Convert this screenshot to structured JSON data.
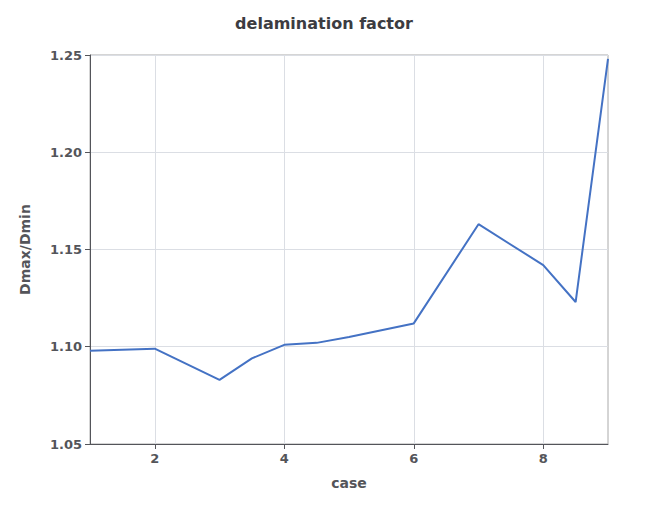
{
  "chart_data": {
    "type": "line",
    "title": "delamination factor",
    "xlabel": "case",
    "ylabel": "Dmax/Dmin",
    "x": [
      1,
      2,
      3,
      3.5,
      4,
      4.5,
      5,
      6,
      7,
      8,
      8.5,
      9
    ],
    "values": [
      1.098,
      1.099,
      1.083,
      1.094,
      1.101,
      1.102,
      1.105,
      1.112,
      1.163,
      1.142,
      1.123,
      1.248
    ],
    "color": "#4472c4",
    "xlim": [
      1,
      9
    ],
    "xticks": [
      2,
      4,
      6,
      8
    ],
    "ylim": [
      1.05,
      1.25
    ],
    "yticks": [
      1.05,
      {
        "value": 1.1,
        "label": "1.10"
      },
      1.15,
      {
        "value": 1.2,
        "label": "1.20"
      },
      1.25
    ],
    "grid": true
  }
}
